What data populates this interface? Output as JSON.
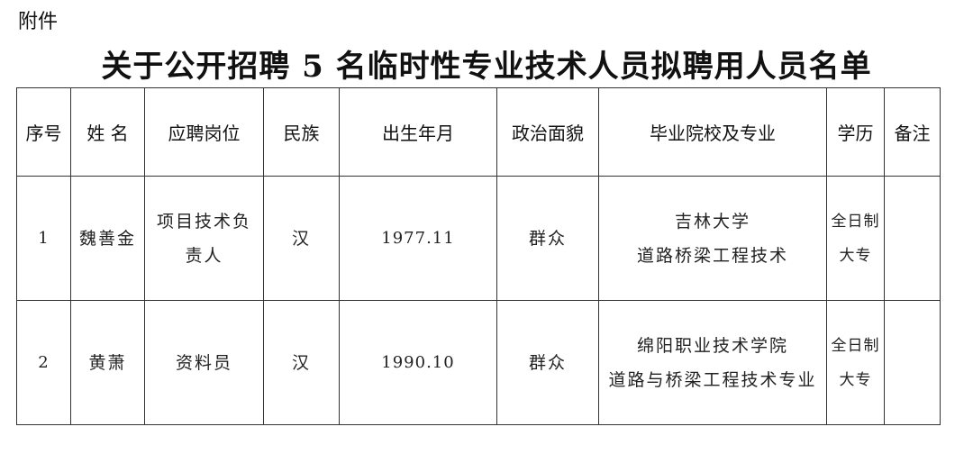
{
  "attachment_label": "附件",
  "title": "关于公开招聘 5 名临时性专业技术人员拟聘用人员名单",
  "table": {
    "headers": [
      "序号",
      "姓 名",
      "应聘岗位",
      "民族",
      "出生年月",
      "政治面貌",
      "毕业院校及专业",
      "学历",
      "备注"
    ],
    "rows": [
      {
        "no": "1",
        "name": "魏善金",
        "position": [
          "项目技术负",
          "责人"
        ],
        "ethnicity": "汉",
        "birth": "1977.11",
        "political": "群众",
        "school": [
          "吉林大学",
          "道路桥梁工程技术"
        ],
        "education": [
          "全日制",
          "大专"
        ],
        "remark": ""
      },
      {
        "no": "2",
        "name": "黄萧",
        "position": [
          "资料员"
        ],
        "ethnicity": "汉",
        "birth": "1990.10",
        "political": "群众",
        "school": [
          "绵阳职业技术学院",
          "道路与桥梁工程技术专业"
        ],
        "education": [
          "全日制",
          "大专"
        ],
        "remark": ""
      }
    ]
  }
}
